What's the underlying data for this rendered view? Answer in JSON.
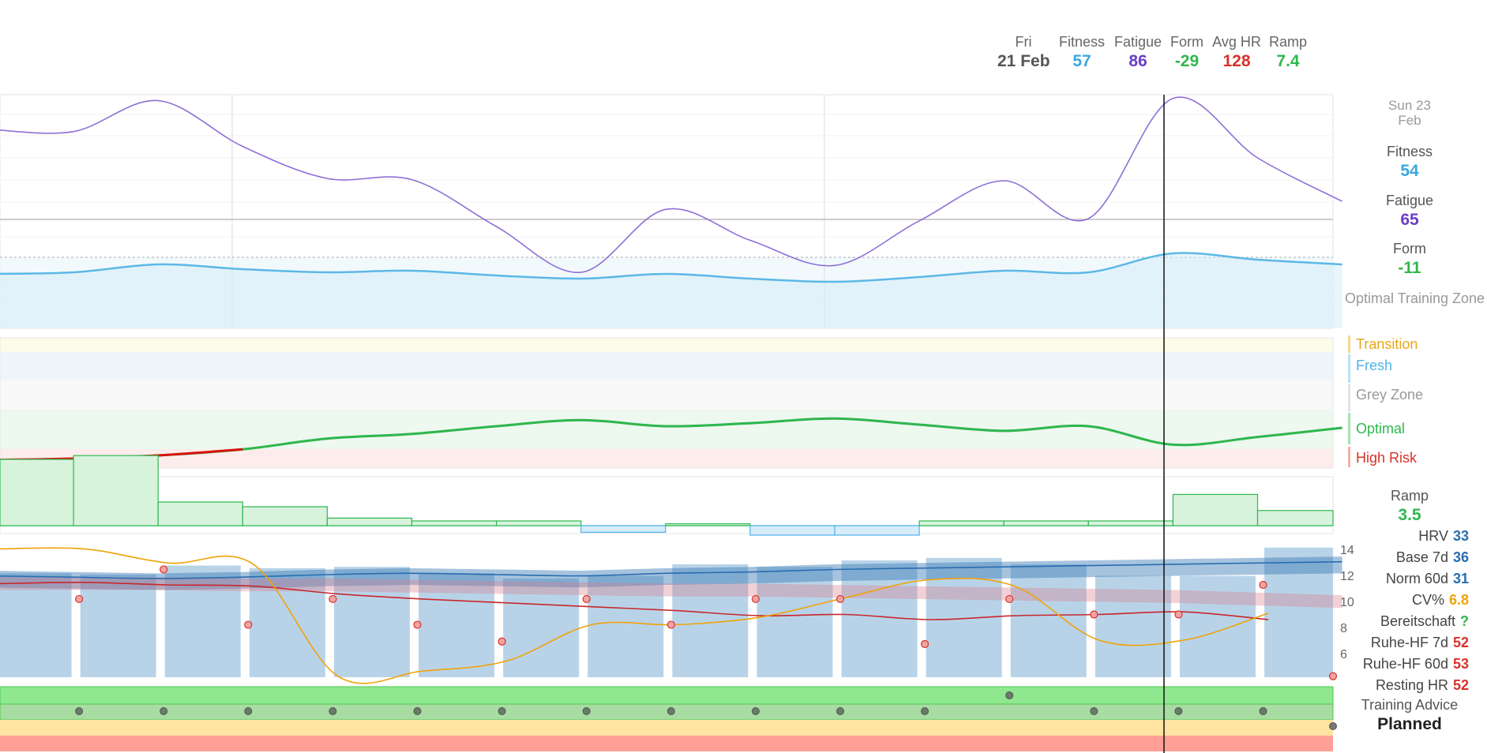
{
  "header": {
    "day": "Fri",
    "date": "21 Feb",
    "fitness_label": "Fitness",
    "fitness_value": "57",
    "fatigue_label": "Fatigue",
    "fatigue_value": "86",
    "form_label": "Form",
    "form_value": "-29",
    "avghr_label": "Avg HR",
    "avghr_value": "128",
    "ramp_label": "Ramp",
    "ramp_value": "7.4"
  },
  "sidebar": {
    "date_line1": "Sun 23",
    "date_line2": "Feb",
    "fitness_label": "Fitness",
    "fitness_value": "54",
    "fatigue_label": "Fatigue",
    "fatigue_value": "65",
    "form_label": "Form",
    "form_value": "-11",
    "zone_name": "Optimal Training Zone",
    "ramp_label": "Ramp",
    "ramp_value": "3.5"
  },
  "form_zones": [
    {
      "label": "Transition",
      "color": "#e6a817"
    },
    {
      "label": "Fresh",
      "color": "#4fb3e8"
    },
    {
      "label": "Grey Zone",
      "color": "#999999"
    },
    {
      "label": "Optimal",
      "color": "#2db84d"
    },
    {
      "label": "High Risk",
      "color": "#d9322b"
    }
  ],
  "wellness": {
    "hrv_label": "HRV",
    "hrv_value": "33",
    "base7_label": "Base 7d",
    "base7_value": "36",
    "norm60_label": "Norm 60d",
    "norm60_value": "31",
    "cv_label": "CV%",
    "cv_value": "6.8",
    "readiness_label": "Bereitschaft",
    "readiness_value": "?",
    "rhr7_label": "Ruhe-HF 7d",
    "rhr7_value": "52",
    "rhr60_label": "Ruhe-HF 60d",
    "rhr60_value": "53",
    "rhr_label": "Resting HR",
    "rhr_value": "52"
  },
  "wellness_axis_ticks": [
    "14",
    "12",
    "10",
    "8",
    "6"
  ],
  "advice": {
    "label": "Training Advice",
    "status": "Planned"
  },
  "colors": {
    "fitness": "#3ba7dd",
    "fatigue": "#6a3fc4",
    "form": "#2db84d",
    "avghr": "#d9322b",
    "ramp": "#2db84d",
    "hrv": "#2a6db0",
    "cv": "#f0a30a",
    "rhr": "#d9322b"
  },
  "chart_data": {
    "type": "line",
    "x": [
      0,
      1,
      2,
      3,
      4,
      5,
      6,
      7,
      8,
      9,
      10,
      11,
      12,
      13,
      14,
      15,
      16,
      17
    ],
    "fatigue": [
      125,
      123,
      150,
      110,
      82,
      81,
      40,
      0,
      55,
      28,
      6,
      45,
      80,
      47,
      152,
      100,
      62
    ],
    "fitness": [
      34,
      35,
      40,
      37,
      35,
      36,
      33,
      31,
      34,
      31,
      29,
      32,
      36,
      35,
      47,
      43,
      40
    ],
    "form_curve": [
      -32,
      -31,
      -29,
      -25,
      -18,
      -15,
      -10,
      -6,
      -10,
      -8,
      -5,
      -9,
      -13,
      -10,
      -22,
      -17,
      -11
    ],
    "ramp": [
      7.0,
      7.4,
      2.5,
      2.0,
      0.8,
      0.5,
      0.5,
      -0.7,
      0.2,
      -1.0,
      -1.0,
      0.5,
      0.5,
      0.5,
      3.3,
      1.6,
      1.6
    ],
    "hrv_bars": [
      12.2,
      12.1,
      12.8,
      12.6,
      12.7,
      12.2,
      11.8,
      12.0,
      12.9,
      12.7,
      13.2,
      13.4,
      12.9,
      12.0,
      12.0,
      14.2
    ],
    "hrv_baseline": [
      12.0,
      11.9,
      11.8,
      11.9,
      12.1,
      12.2,
      12.1,
      12.0,
      12.2,
      12.3,
      12.5,
      12.6,
      12.7,
      12.8,
      12.9,
      13.0,
      13.1
    ],
    "cv": [
      14.1,
      14.1,
      13.0,
      12.9,
      4.2,
      4.6,
      5.4,
      8.2,
      8.2,
      8.8,
      10.3,
      11.7,
      11.2,
      7.0,
      7.0,
      9.1
    ],
    "rhr_points": [
      10.2,
      12.5,
      8.2,
      10.2,
      8.2,
      6.9,
      10.2,
      8.2,
      10.2,
      10.2,
      6.7,
      10.2,
      9.0,
      9.0,
      11.3,
      4.2
    ],
    "rhr_line": [
      11.4,
      11.5,
      11.3,
      11.2,
      10.6,
      10.2,
      9.9,
      9.6,
      9.3,
      8.9,
      9.0,
      8.6,
      8.9,
      9.0,
      9.2,
      8.6
    ]
  }
}
